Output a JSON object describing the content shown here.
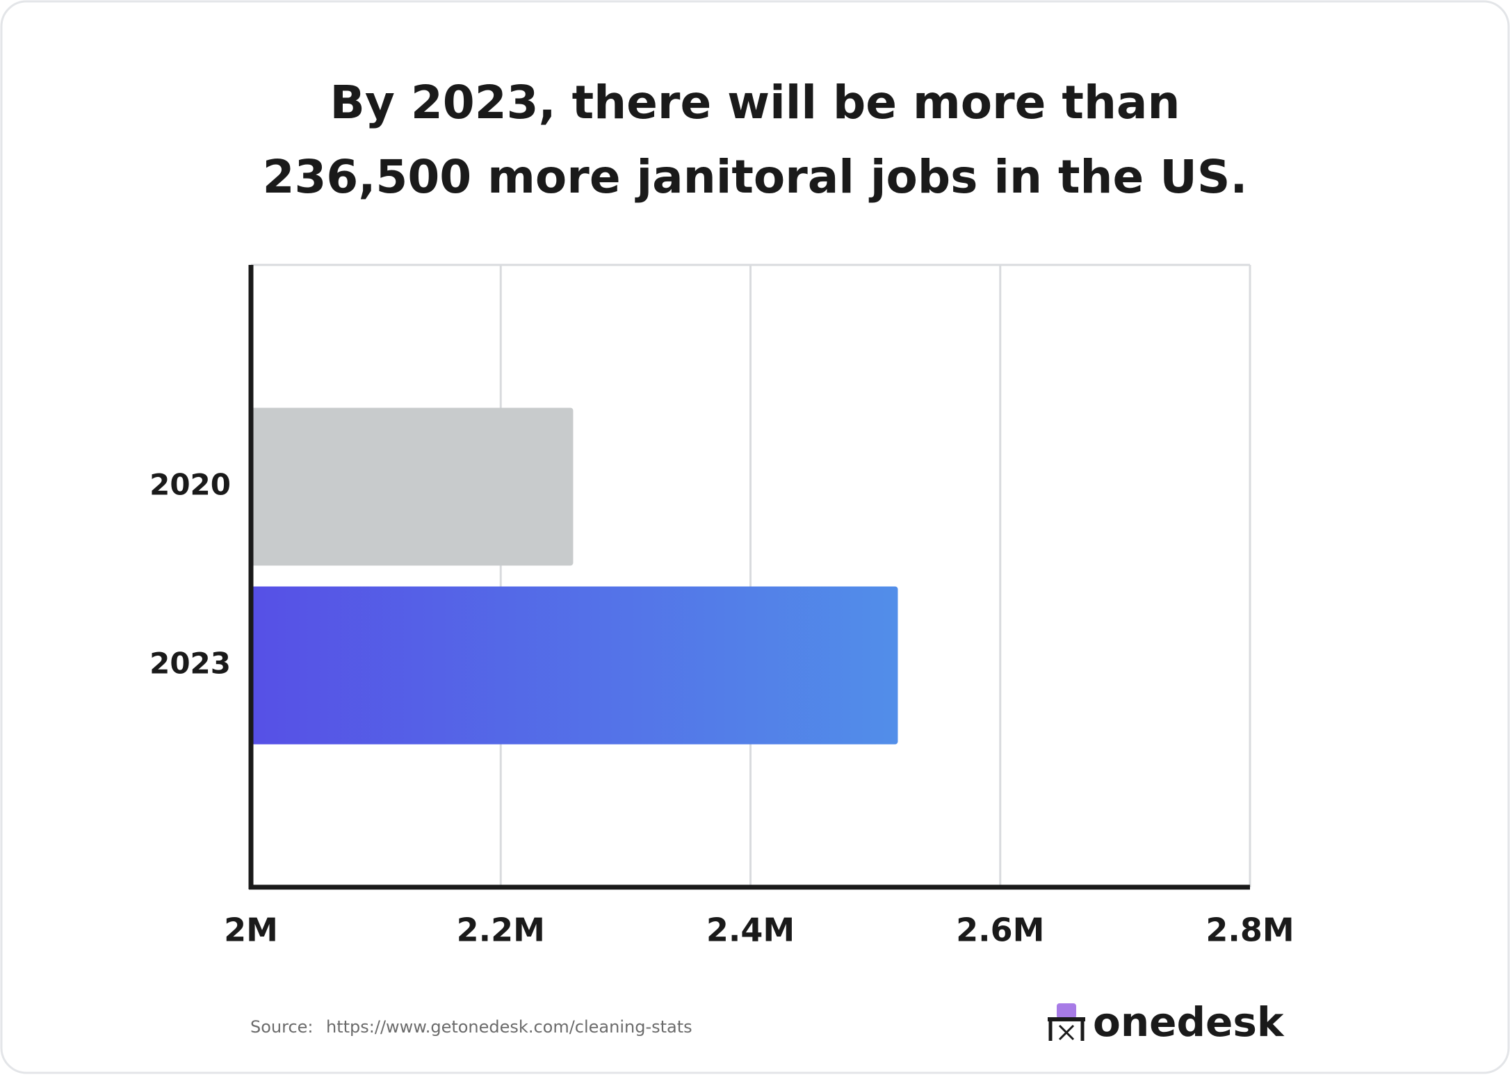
{
  "chart_data": {
    "type": "bar",
    "orientation": "horizontal",
    "title": [
      "By 2023, there will be more than",
      "236,500 more janitoral jobs in the US."
    ],
    "categories": [
      "2020",
      "2023"
    ],
    "values": [
      2258000,
      2518000
    ],
    "bar_colors": [
      [
        "#c8cbcc",
        "#c8cbcc"
      ],
      [
        "#5650e6",
        "#528ee9"
      ]
    ],
    "xlim": [
      2000000,
      2800000
    ],
    "xticks": [
      {
        "value": 2000000,
        "label": "2M"
      },
      {
        "value": 2200000,
        "label": "2.2M"
      },
      {
        "value": 2400000,
        "label": "2.4M"
      },
      {
        "value": 2600000,
        "label": "2.6M"
      },
      {
        "value": 2800000,
        "label": "2.8M"
      }
    ],
    "grid": true
  },
  "footer": {
    "source_label": "Source:",
    "source_url": "https://www.getonedesk.com/cleaning-stats",
    "brand": "onedesk"
  }
}
